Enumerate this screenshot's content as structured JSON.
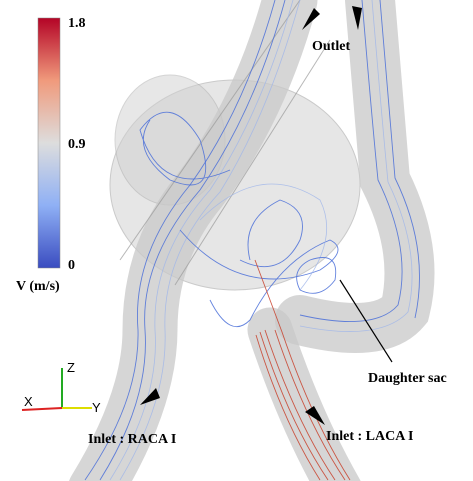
{
  "colorbar": {
    "ticks": [
      "1.8",
      "0.9",
      "0"
    ],
    "label": "V (m/s)"
  },
  "annotations": {
    "outlet": "Outlet",
    "daughter_sac": "Daughter sac",
    "inlet_raca": "Inlet : RACA I",
    "inlet_laca": "Inlet : LACA I"
  },
  "axes": {
    "x": "X",
    "y": "Y",
    "z": "Z"
  }
}
